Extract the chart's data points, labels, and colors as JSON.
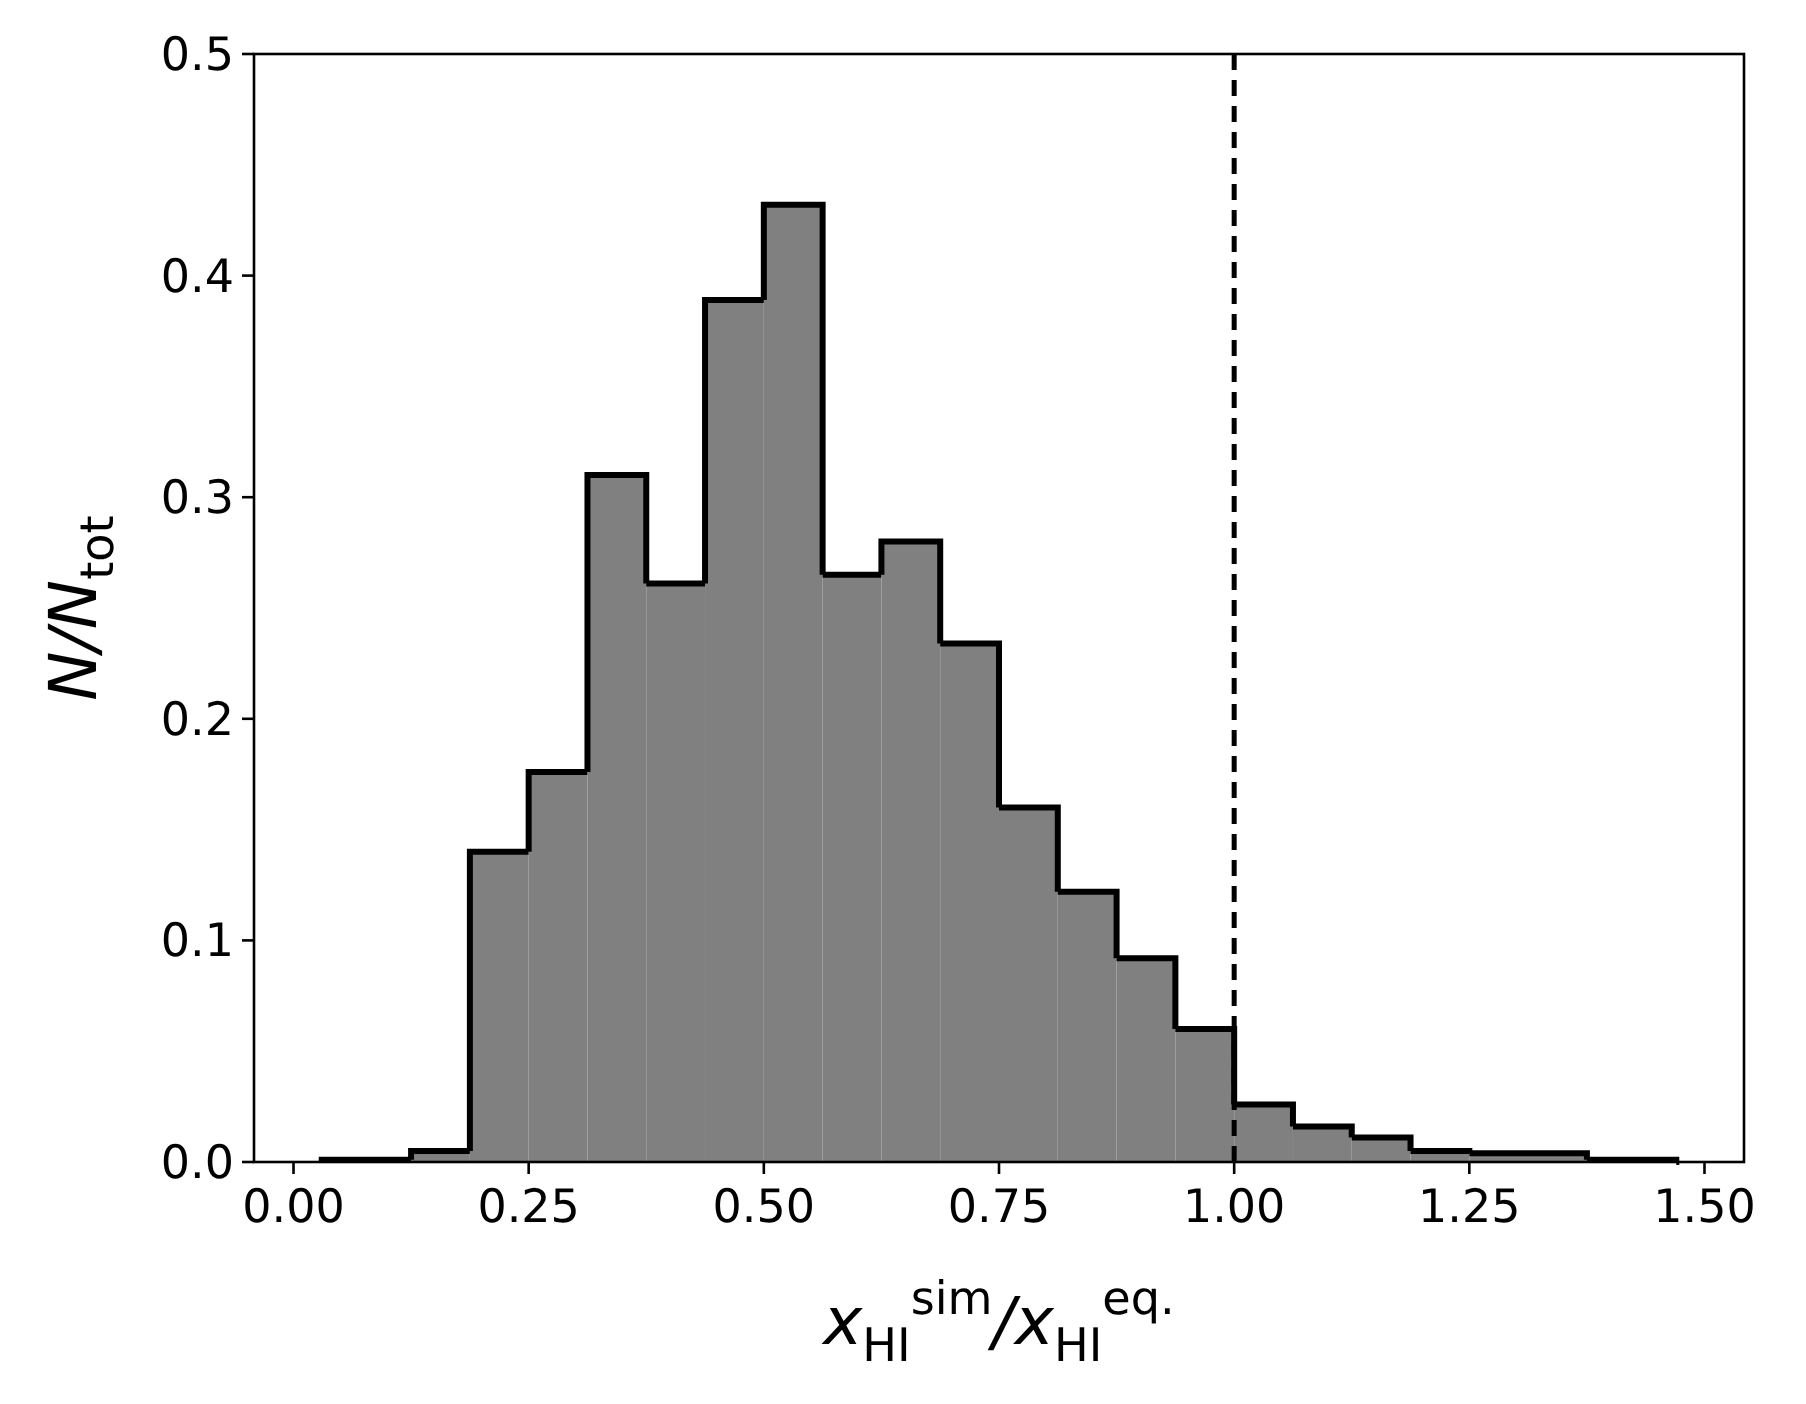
{
  "chart_data": {
    "type": "histogram",
    "xlabel": "x$_{HI}$$^{sim}$/x$_{HI}$$^{eq.}$",
    "ylabel": "N/N$_{tot}$",
    "bins": [
      0.03,
      0.125,
      0.1875,
      0.25,
      0.3125,
      0.375,
      0.4375,
      0.5,
      0.5625,
      0.625,
      0.6875,
      0.75,
      0.8125,
      0.875,
      0.9375,
      1.0,
      1.0625,
      1.125,
      1.1875,
      1.25,
      1.375,
      1.47
    ],
    "values": [
      0.001,
      0.005,
      0.14,
      0.176,
      0.31,
      0.261,
      0.389,
      0.432,
      0.265,
      0.28,
      0.234,
      0.16,
      0.122,
      0.092,
      0.06,
      0.026,
      0.016,
      0.011,
      0.005,
      0.004,
      0.001
    ],
    "color": "#808080",
    "xlim": [
      -0.042,
      1.542
    ],
    "xticks": [
      {
        "value": 0,
        "label": "0.00"
      },
      {
        "value": 0.25,
        "label": "0.25"
      },
      {
        "value": 0.5,
        "label": "0.50"
      },
      {
        "value": 0.75,
        "label": "0.75"
      },
      {
        "value": 1,
        "label": "1.00"
      },
      {
        "value": 1.25,
        "label": "1.25"
      },
      {
        "value": 1.5,
        "label": "1.50"
      }
    ],
    "ylim": [
      0,
      0.5
    ],
    "yticks": [
      {
        "value": 0,
        "label": "0.0"
      },
      {
        "value": 0.1,
        "label": "0.1"
      },
      {
        "value": 0.2,
        "label": "0.2"
      },
      {
        "value": 0.3,
        "label": "0.3"
      },
      {
        "value": 0.4,
        "label": "0.4"
      },
      {
        "value": 0.5,
        "label": "0.5"
      }
    ],
    "ref_lines": [
      {
        "axis": "x",
        "value": 1.0,
        "color": "#000000",
        "line_style": "dashed"
      }
    ],
    "grid": false
  }
}
